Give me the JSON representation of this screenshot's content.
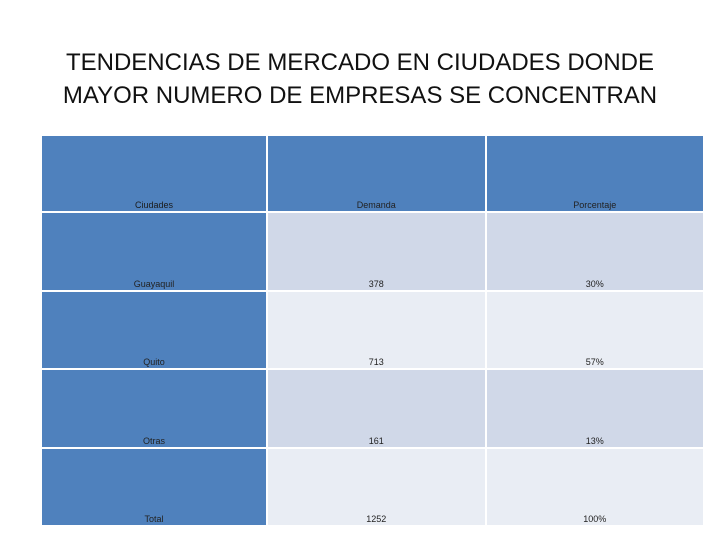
{
  "title": {
    "line1": "TENDENCIAS DE MERCADO EN CIUDADES DONDE",
    "line2": "MAYOR NUMERO DE EMPRESAS SE CONCENTRAN"
  },
  "table": {
    "headers": [
      "Ciudades",
      "Demanda",
      "Porcentaje"
    ],
    "rows": [
      [
        "Guayaquil",
        "378",
        "30%"
      ],
      [
        "Quito",
        "713",
        "57%"
      ],
      [
        "Otras",
        "161",
        "13%"
      ],
      [
        "Total",
        "1252",
        "100%"
      ]
    ]
  },
  "colors": {
    "header": "#4f81bd",
    "band_dark": "#d0d8e8",
    "band_light": "#e9edf4"
  }
}
